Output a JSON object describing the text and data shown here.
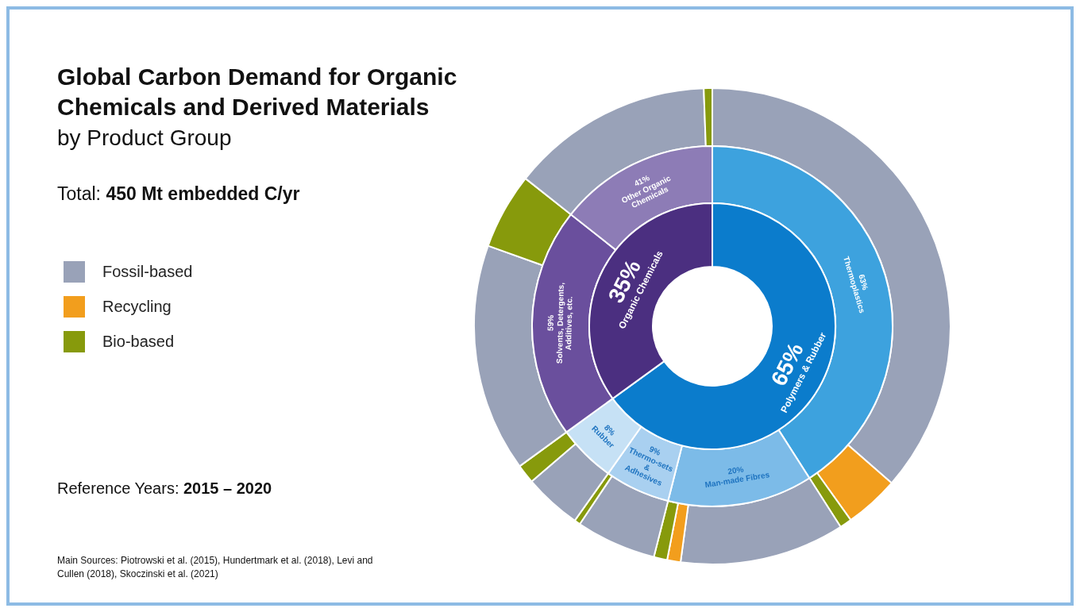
{
  "chart_data": [
    {
      "type": "donut",
      "title": "Global Carbon Demand for Organic Chemicals and Derived Materials",
      "subtitle": "by Product Group",
      "legend": "left",
      "categories": [
        "Fossil-based",
        "Recycling",
        "Bio-based"
      ],
      "values": [
        89,
        9,
        2
      ],
      "colors": [
        "#99a2b8",
        "#f29e1d",
        "#879a0c"
      ],
      "annotations": [
        "Total: 450 Mt embedded C/yr",
        "Reference Years: 2015 – 2020",
        "Main Sources: Piotrowski et al. (2015), Hundertmark et al. (2018), Levi and Cullen (2018), Skoczinski et al. (2021)"
      ]
    },
    {
      "type": "donut",
      "categories": [
        null,
        null,
        null
      ],
      "values": [
        86,
        7,
        7
      ],
      "colors": [
        "#99a2b8",
        "#f29e1d",
        "#879a0c"
      ]
    },
    {
      "type": "donut",
      "categories": [
        null,
        null
      ],
      "values": [
        93,
        7
      ],
      "colors": [
        "#99a2b8",
        "#879a0c"
      ]
    },
    {
      "type": "donut",
      "categories": [
        null,
        null
      ],
      "values": [
        75,
        25
      ],
      "colors": [
        "#99a2b8",
        "#879a0c"
      ]
    },
    {
      "type": "donut",
      "categories": [
        null,
        null
      ],
      "values": [
        75,
        25
      ],
      "colors": [
        "#99a2b8",
        "#879a0c"
      ]
    },
    {
      "type": "donut",
      "categories": [
        null,
        null
      ],
      "values": [
        96,
        4
      ],
      "colors": [
        "#99a2b8",
        "#879a0c"
      ]
    },
    {
      "type": "donut",
      "categories": [
        "Thermoplastics",
        "Man-made Fibres",
        "Thermo-sets & Adhesives",
        "Rubber"
      ],
      "values": [
        63,
        20,
        9,
        8
      ],
      "value_labels": [
        "63%",
        "20%",
        "9%",
        "8%"
      ],
      "colors": [
        "#3da2de",
        "#7cbbe8",
        "#a9d0f0",
        "#c6e1f5"
      ]
    },
    {
      "type": "donut",
      "categories": [
        "Solvents, Detergents, Additives, etc.",
        "Other Organic Chemicals"
      ],
      "values": [
        59,
        41
      ],
      "value_labels": [
        "59%",
        "41%"
      ],
      "colors": [
        "#6a4f9d",
        "#8d7cb6"
      ]
    },
    {
      "type": "donut",
      "categories": [
        "Polymers & Rubber",
        "Organic Chemicals"
      ],
      "values": [
        65,
        35
      ],
      "value_labels": [
        "65%",
        "35%"
      ],
      "colors": [
        "#0b7ccc",
        "#4b2f80"
      ]
    }
  ]
}
